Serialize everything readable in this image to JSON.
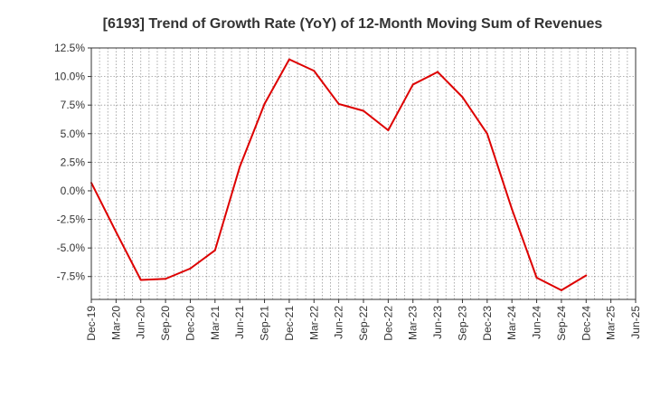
{
  "chart_data": {
    "type": "line",
    "title": "[6193]  Trend of Growth Rate (YoY) of 12-Month Moving Sum of Revenues",
    "xlabel": "",
    "ylabel": "",
    "x_ticks": [
      "Dec-19",
      "Mar-20",
      "Jun-20",
      "Sep-20",
      "Dec-20",
      "Mar-21",
      "Jun-21",
      "Sep-21",
      "Dec-21",
      "Mar-22",
      "Jun-22",
      "Sep-22",
      "Dec-22",
      "Mar-23",
      "Jun-23",
      "Sep-23",
      "Dec-23",
      "Mar-24",
      "Jun-24",
      "Sep-24",
      "Dec-24",
      "Mar-25",
      "Jun-25"
    ],
    "y_ticks": [
      "12.5%",
      "10.0%",
      "7.5%",
      "5.0%",
      "2.5%",
      "0.0%",
      "-2.5%",
      "-5.0%",
      "-7.5%"
    ],
    "ylim": [
      -9.5,
      12.5
    ],
    "grid": true,
    "series": [
      {
        "color": "#dd0000",
        "points": [
          {
            "x": "Dec-19",
            "y": 0.7
          },
          {
            "x": "Mar-20",
            "y": -3.6
          },
          {
            "x": "Jun-20",
            "y": -7.8
          },
          {
            "x": "Sep-20",
            "y": -7.7
          },
          {
            "x": "Dec-20",
            "y": -6.8
          },
          {
            "x": "Mar-21",
            "y": -5.2
          },
          {
            "x": "Jun-21",
            "y": 2.1
          },
          {
            "x": "Sep-21",
            "y": 7.6
          },
          {
            "x": "Dec-21",
            "y": 11.5
          },
          {
            "x": "Mar-22",
            "y": 10.5
          },
          {
            "x": "Jun-22",
            "y": 7.6
          },
          {
            "x": "Sep-22",
            "y": 7.0
          },
          {
            "x": "Dec-22",
            "y": 5.3
          },
          {
            "x": "Mar-23",
            "y": 9.3
          },
          {
            "x": "Jun-23",
            "y": 10.4
          },
          {
            "x": "Sep-23",
            "y": 8.2
          },
          {
            "x": "Dec-23",
            "y": 5.0
          },
          {
            "x": "Mar-24",
            "y": -1.6
          },
          {
            "x": "Jun-24",
            "y": -7.6
          },
          {
            "x": "Sep-24",
            "y": -8.7
          },
          {
            "x": "Dec-24",
            "y": -7.4
          }
        ]
      }
    ]
  }
}
